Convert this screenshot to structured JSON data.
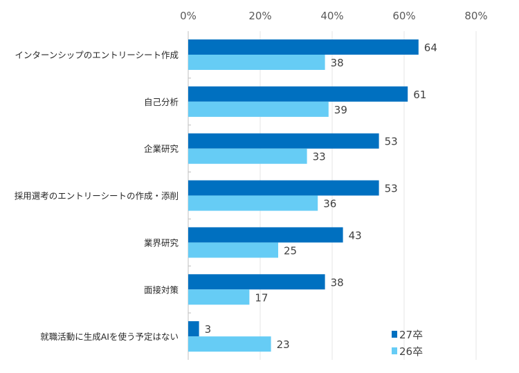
{
  "chart_data": {
    "type": "bar",
    "orientation": "horizontal",
    "categories": [
      "インターンシップのエントリーシート作成",
      "自己分析",
      "企業研究",
      "採用選考のエントリーシートの作成・添削",
      "業界研究",
      "面接対策",
      "就職活動に生成AIを使う予定はない"
    ],
    "series": [
      {
        "name": "27卒",
        "color": "#0070C0",
        "values": [
          64,
          61,
          53,
          53,
          43,
          38,
          3
        ]
      },
      {
        "name": "26卒",
        "color": "#66CCF5",
        "values": [
          38,
          39,
          33,
          36,
          25,
          17,
          23
        ]
      }
    ],
    "xlim": [
      0,
      80
    ],
    "xticks": [
      "0%",
      "20%",
      "40%",
      "60%",
      "80%"
    ],
    "xtick_values": [
      0,
      20,
      40,
      60,
      80
    ],
    "grid": true,
    "legend": "bottom-right",
    "data_labels": true
  }
}
